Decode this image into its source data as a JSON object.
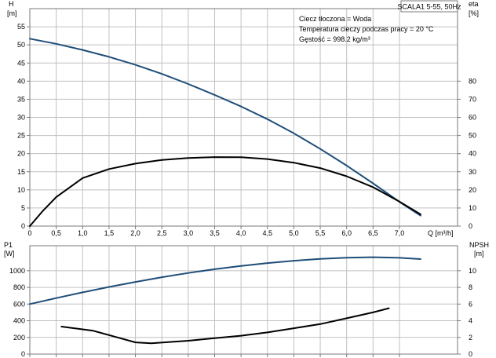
{
  "colors": {
    "blue_curve": "#1f4e79",
    "black_curve": "#000000",
    "grid": "#c0c0c0",
    "frame": "#7a7a7a"
  },
  "info": {
    "title": "SCALA1 5-55, 50Hz",
    "lines": [
      "Ciecz tłoczona = Woda",
      "Temperatura cieczy podczas pracy = 20 °C",
      "Gęstość = 998.2 kg/m³"
    ]
  },
  "chart_data": [
    {
      "type": "line",
      "panel": "top",
      "grid": true,
      "x_label": "Q [m³/h]",
      "x_ticks": [
        "0",
        "0,5",
        "1,0",
        "1,5",
        "2,0",
        "2,5",
        "3,0",
        "3,5",
        "4,0",
        "4,5",
        "5,0",
        "5,5",
        "6,0",
        "6,5",
        "7,0"
      ],
      "xlim": [
        0,
        8.1
      ],
      "y_left": {
        "label_line1": "H",
        "label_line2": "[m]",
        "ticks": [
          "0",
          "5",
          "10",
          "15",
          "20",
          "25",
          "30",
          "35",
          "40",
          "45",
          "50",
          "55"
        ],
        "lim": [
          0,
          60
        ]
      },
      "y_right": {
        "label_line1": "eta",
        "label_line2": "[%]",
        "ticks": [
          "0",
          "10",
          "20",
          "30",
          "40",
          "50",
          "60",
          "70",
          "80"
        ],
        "lim": [
          0,
          120
        ]
      },
      "series": [
        {
          "key": "H",
          "axis": "left",
          "color": "#1f4e79",
          "x": [
            0,
            0.5,
            1.0,
            1.5,
            2.0,
            2.5,
            3.0,
            3.5,
            4.0,
            4.5,
            5.0,
            5.5,
            6.0,
            6.5,
            7.0,
            7.4
          ],
          "y": [
            51.7,
            50.3,
            48.6,
            46.7,
            44.5,
            42.0,
            39.2,
            36.2,
            33.0,
            29.5,
            25.6,
            21.3,
            16.7,
            11.8,
            6.7,
            2.9
          ]
        },
        {
          "key": "eta",
          "axis": "right",
          "color": "#000000",
          "x": [
            0,
            0.25,
            0.5,
            1.0,
            1.5,
            2.0,
            2.5,
            3.0,
            3.5,
            4.0,
            4.5,
            5.0,
            5.5,
            6.0,
            6.5,
            7.0,
            7.4
          ],
          "y": [
            0,
            8.5,
            16,
            26.5,
            31.5,
            34.5,
            36.5,
            37.6,
            38.1,
            38.0,
            37.0,
            35.0,
            32.0,
            27.5,
            21.5,
            13.5,
            6.5
          ]
        }
      ]
    },
    {
      "type": "line",
      "panel": "bottom",
      "grid": true,
      "xlim": [
        0,
        8.1
      ],
      "y_left": {
        "label_line1": "P1",
        "label_line2": "[W]",
        "ticks": [
          "0",
          "200",
          "400",
          "600",
          "800",
          "1000"
        ],
        "lim": [
          0,
          1300
        ]
      },
      "y_right": {
        "label_line1": "NPSH",
        "label_line2": "[m]",
        "ticks": [
          "0",
          "2",
          "4",
          "6",
          "8",
          "10"
        ],
        "lim": [
          0,
          13
        ]
      },
      "series": [
        {
          "key": "P1",
          "axis": "left",
          "color": "#1f4e79",
          "x": [
            0,
            0.5,
            1.0,
            1.5,
            2.0,
            2.5,
            3.0,
            3.5,
            4.0,
            4.5,
            5.0,
            5.5,
            6.0,
            6.5,
            7.0,
            7.4
          ],
          "y": [
            600,
            672,
            740,
            805,
            866,
            922,
            973,
            1018,
            1058,
            1092,
            1120,
            1142,
            1157,
            1162,
            1155,
            1140
          ]
        },
        {
          "key": "NPSH",
          "axis": "right",
          "color": "#000000",
          "x": [
            0.6,
            1.2,
            1.6,
            2.0,
            2.3,
            3.0,
            3.5,
            4.0,
            4.5,
            5.0,
            5.5,
            6.0,
            6.5,
            6.8
          ],
          "y": [
            3.3,
            2.8,
            2.1,
            1.4,
            1.3,
            1.6,
            1.9,
            2.2,
            2.6,
            3.1,
            3.6,
            4.3,
            5.0,
            5.5
          ]
        }
      ]
    }
  ]
}
